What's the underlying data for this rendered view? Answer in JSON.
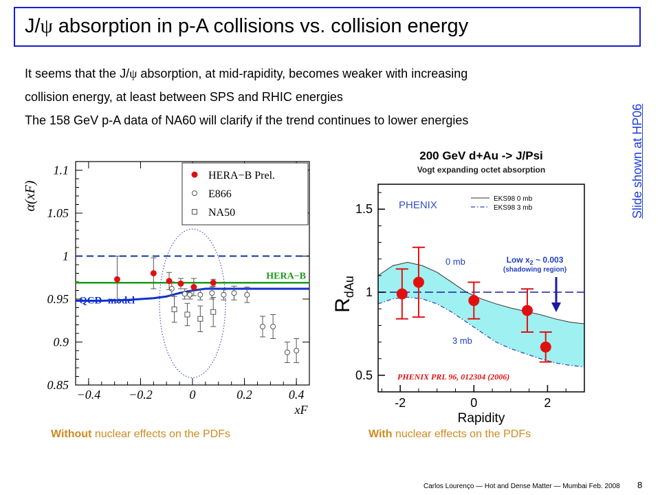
{
  "title": {
    "pre": "J/",
    "psi": "ψ",
    "post": " absorption in p-A collisions vs. collision energy"
  },
  "body": {
    "line1_pre": "It seems that the J/",
    "line1_psi": "ψ",
    "line1_post": " absorption, at mid-rapidity, becomes weaker with increasing",
    "line2": "collision energy, at least between SPS and RHIC energies",
    "line3": "The 158 GeV p-A data of NA60 will clarify if the trend continues to lower energies"
  },
  "side_link": "Slide shown at HP06",
  "captions": {
    "left_bold": "Without",
    "left_rest": " nuclear effects on the PDFs",
    "right_bold": "With",
    "right_rest": " nuclear effects on the PDFs"
  },
  "footer": "Carlos Lourenço — Hot and Dense Matter — Mumbai Feb. 2008",
  "page_number": "8",
  "chart_data": [
    {
      "type": "scatter",
      "xlabel": "xF",
      "ylabel": "α(xF)",
      "xlim": [
        -0.45,
        0.45
      ],
      "ylim": [
        0.85,
        1.11
      ],
      "xticks": [
        "−0.4",
        "−0.2",
        "0",
        "0.2",
        "0.4"
      ],
      "yticks": [
        "0.85",
        "0.9",
        "0.95",
        "1",
        "1.05",
        "1.1"
      ],
      "legend": [
        "HERA−B Prel.",
        "E866",
        "NA50"
      ],
      "legend_position": "top-right",
      "reference_line": 1.0,
      "hera_b_line": {
        "label": "HERA−B",
        "value": 0.969,
        "color": "#1a9a1a"
      },
      "qcd_model": {
        "label": "QCD−model",
        "color": "#1030d0",
        "x": [
          -0.45,
          -0.35,
          -0.25,
          -0.15,
          -0.1,
          -0.05,
          0,
          0.05,
          0.1,
          0.15,
          0.2,
          0.3,
          0.45
        ],
        "y": [
          0.948,
          0.948,
          0.949,
          0.951,
          0.953,
          0.957,
          0.96,
          0.962,
          0.962,
          0.962,
          0.962,
          0.962,
          0.962
        ]
      },
      "series": [
        {
          "name": "HERA−B Prel.",
          "marker": "filled-circle",
          "color": "#e01010",
          "x": [
            -0.29,
            -0.15,
            -0.09,
            -0.045,
            0.005,
            0.08
          ],
          "y": [
            0.973,
            0.98,
            0.971,
            0.968,
            0.964,
            0.969
          ],
          "err": [
            0.027,
            0.018,
            0.01,
            0.006,
            0.01,
            0.004
          ]
        },
        {
          "name": "E866",
          "marker": "open-circle",
          "x": [
            -0.08,
            -0.03,
            -0.01,
            0.03,
            0.075,
            0.12,
            0.16,
            0.21,
            0.27,
            0.31,
            0.365,
            0.4
          ],
          "y": [
            0.962,
            0.956,
            0.955,
            0.955,
            0.957,
            0.955,
            0.957,
            0.955,
            0.918,
            0.918,
            0.888,
            0.89
          ],
          "err": [
            0.008,
            0.006,
            0.005,
            0.006,
            0.007,
            0.006,
            0.008,
            0.009,
            0.012,
            0.014,
            0.012,
            0.014
          ]
        },
        {
          "name": "NA50",
          "marker": "open-square",
          "x": [
            -0.07,
            -0.02,
            0.03,
            0.08
          ],
          "y": [
            0.938,
            0.932,
            0.927,
            0.935
          ],
          "err": [
            0.015,
            0.013,
            0.015,
            0.017
          ]
        }
      ]
    },
    {
      "type": "scatter",
      "title": "200 GeV d+Au -> J/Psi",
      "subtitle": "Vogt expanding octet absorption",
      "xlabel": "Rapidity",
      "ylabel": "R_dAu",
      "ylabel_main": "R",
      "ylabel_sub": "dAu",
      "xlim": [
        -2.6,
        3.0
      ],
      "ylim": [
        0.4,
        1.65
      ],
      "xticks": [
        "-2",
        "0",
        "2"
      ],
      "yticks": [
        "0.5",
        "1",
        "1.5"
      ],
      "experiment_label": "PHENIX",
      "legend": [
        "EKS98 0 mb",
        "EKS98 3 mb"
      ],
      "legend_position": "top-right",
      "reference_line": 1.0,
      "band_upper_0mb": {
        "label": "0 mb",
        "x": [
          -2.6,
          -2.2,
          -1.8,
          -1.4,
          -1.0,
          -0.6,
          -0.2,
          0.2,
          0.6,
          1.0,
          1.4,
          1.8,
          2.2,
          2.6,
          3.0
        ],
        "y": [
          1.1,
          1.16,
          1.18,
          1.16,
          1.12,
          1.06,
          1.0,
          0.96,
          0.93,
          0.905,
          0.885,
          0.865,
          0.84,
          0.82,
          0.81
        ]
      },
      "band_lower_3mb": {
        "label": "3 mb",
        "x": [
          -2.6,
          -2.2,
          -1.8,
          -1.4,
          -1.0,
          -0.6,
          -0.2,
          0.2,
          0.6,
          1.0,
          1.4,
          1.8,
          2.2,
          2.6,
          3.0
        ],
        "y": [
          0.93,
          0.96,
          0.97,
          0.96,
          0.93,
          0.88,
          0.82,
          0.76,
          0.7,
          0.66,
          0.63,
          0.6,
          0.575,
          0.56,
          0.55
        ]
      },
      "annotation": {
        "line1": "Low x",
        "sub": "2",
        "line1_rest": " ~ 0.003",
        "line2": "(shadowing region)"
      },
      "citation": "PHENIX PRL 96, 012304 (2006)",
      "series": [
        {
          "name": "PHENIX data",
          "marker": "filled-circle",
          "color": "#e01010",
          "x": [
            -1.95,
            -1.5,
            0.0,
            1.45,
            1.95
          ],
          "y": [
            0.99,
            1.06,
            0.95,
            0.89,
            0.67
          ],
          "err": [
            0.15,
            0.21,
            0.11,
            0.13,
            0.09
          ]
        }
      ]
    }
  ]
}
